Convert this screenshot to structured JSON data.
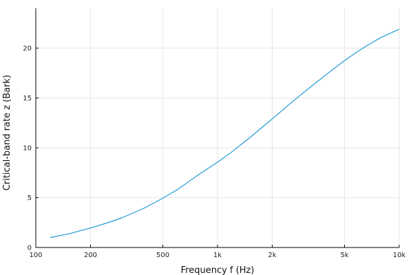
{
  "chart_data": {
    "type": "line",
    "xlabel": "Frequency f (Hz)",
    "ylabel": "Critical-band rate z (Bark)",
    "x_scale": "log",
    "xlim": [
      100,
      10000
    ],
    "ylim": [
      0,
      24
    ],
    "grid": true,
    "legend": "none",
    "x_ticks": [
      {
        "value": 100,
        "label": "100"
      },
      {
        "value": 200,
        "label": "200"
      },
      {
        "value": 500,
        "label": "500"
      },
      {
        "value": 1000,
        "label": "1k"
      },
      {
        "value": 2000,
        "label": "2k"
      },
      {
        "value": 5000,
        "label": "5k"
      },
      {
        "value": 10000,
        "label": "10k"
      }
    ],
    "y_ticks": [
      {
        "value": 0,
        "label": "0"
      },
      {
        "value": 5,
        "label": "5"
      },
      {
        "value": 10,
        "label": "10"
      },
      {
        "value": 15,
        "label": "15"
      },
      {
        "value": 20,
        "label": "20"
      }
    ],
    "series": [
      {
        "color": "#1f9ad6",
        "x": [
          120,
          150,
          200,
          250,
          300,
          400,
          500,
          600,
          700,
          800,
          1000,
          1200,
          1500,
          2000,
          2500,
          3000,
          4000,
          5000,
          6000,
          7000,
          8000,
          10000
        ],
        "y": [
          1.0,
          1.35,
          1.95,
          2.5,
          3.0,
          4.0,
          4.95,
          5.8,
          6.65,
          7.4,
          8.55,
          9.6,
          11.0,
          12.9,
          14.4,
          15.6,
          17.4,
          18.75,
          19.75,
          20.5,
          21.1,
          21.9
        ]
      }
    ]
  }
}
